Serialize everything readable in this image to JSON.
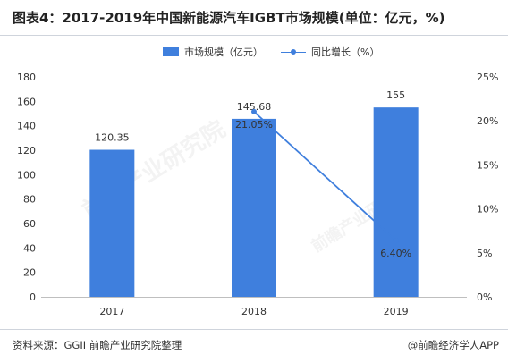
{
  "header": {
    "title": "图表4：2017-2019年中国新能源汽车IGBT市场规模(单位：亿元，%)"
  },
  "footer": {
    "source": "资料来源：GGII 前瞻产业研究院整理",
    "brand": "@前瞻经济学人APP"
  },
  "watermark": {
    "brand_text": "前瞻产业研究院"
  },
  "colors": {
    "bar": "#3f7fdd",
    "line": "#3f7fdd",
    "axis": "#bfbfbf",
    "text": "#333333"
  },
  "chart_data": {
    "type": "bar",
    "categories": [
      "2017",
      "2018",
      "2019"
    ],
    "series": [
      {
        "name": "市场规模（亿元）",
        "type": "bar",
        "axis": "left",
        "values": [
          120.35,
          145.68,
          155
        ],
        "labels": [
          "120.35",
          "145.68",
          "155"
        ]
      },
      {
        "name": "同比增长（%）",
        "type": "line",
        "axis": "right",
        "values": [
          null,
          21.05,
          6.4
        ],
        "labels": [
          "",
          "21.05%",
          "6.40%"
        ]
      }
    ],
    "y_left": {
      "min": 0,
      "max": 180,
      "step": 20,
      "ticks": [
        "0",
        "20",
        "40",
        "60",
        "80",
        "100",
        "120",
        "140",
        "160",
        "180"
      ]
    },
    "y_right": {
      "min": 0,
      "max": 25,
      "step": 5,
      "ticks": [
        "0%",
        "5%",
        "10%",
        "15%",
        "20%",
        "25%"
      ]
    },
    "grid": false,
    "legend_position": "top-center"
  }
}
